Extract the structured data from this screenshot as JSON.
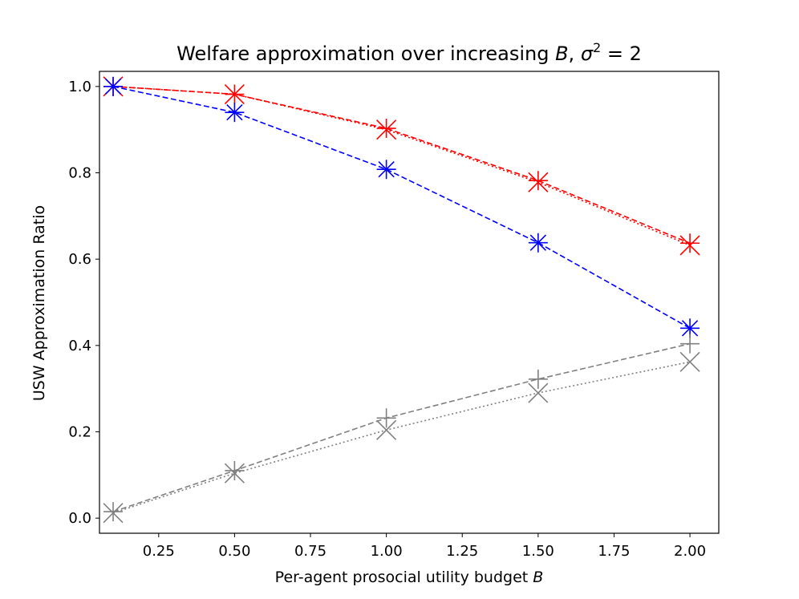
{
  "chart_data": {
    "type": "line",
    "title": {
      "prefix": "Welfare approximation over increasing ",
      "var": "B",
      "mid": ", ",
      "sigma": "σ",
      "sup": "2",
      "suffix": " = 2"
    },
    "xlabel": {
      "text": "Per-agent prosocial utility budget ",
      "var": "B"
    },
    "ylabel": "USW Approximation Ratio",
    "xlim": [
      0.055,
      2.095
    ],
    "ylim": [
      -0.035,
      1.035
    ],
    "xticks": [
      0.25,
      0.5,
      0.75,
      1.0,
      1.25,
      1.5,
      1.75,
      2.0
    ],
    "xtick_labels": [
      "0.25",
      "0.50",
      "0.75",
      "1.00",
      "1.25",
      "1.50",
      "1.75",
      "2.00"
    ],
    "yticks": [
      0.0,
      0.2,
      0.4,
      0.6,
      0.8,
      1.0
    ],
    "ytick_labels": [
      "0.0",
      "0.2",
      "0.4",
      "0.6",
      "0.8",
      "1.0"
    ],
    "grid": false,
    "legend": "none",
    "x": [
      0.1,
      0.5,
      1.0,
      1.5,
      2.0
    ],
    "series": [
      {
        "values": [
          1.0,
          0.982,
          0.9,
          0.778,
          0.632
        ],
        "color": "#ff0000",
        "linestyle": "dotted",
        "marker": "x"
      },
      {
        "values": [
          1.0,
          0.982,
          0.903,
          0.782,
          0.637
        ],
        "color": "#ff0000",
        "linestyle": "dashed",
        "marker": "+"
      },
      {
        "values": [
          1.0,
          0.94,
          0.808,
          0.638,
          0.44
        ],
        "color": "#0000ff",
        "linestyle": "dashed",
        "marker": "star"
      },
      {
        "values": [
          0.012,
          0.104,
          0.204,
          0.29,
          0.362
        ],
        "color": "#808080",
        "linestyle": "dotted",
        "marker": "x"
      },
      {
        "values": [
          0.015,
          0.11,
          0.232,
          0.322,
          0.404
        ],
        "color": "#808080",
        "linestyle": "dashed",
        "marker": "+"
      }
    ]
  }
}
